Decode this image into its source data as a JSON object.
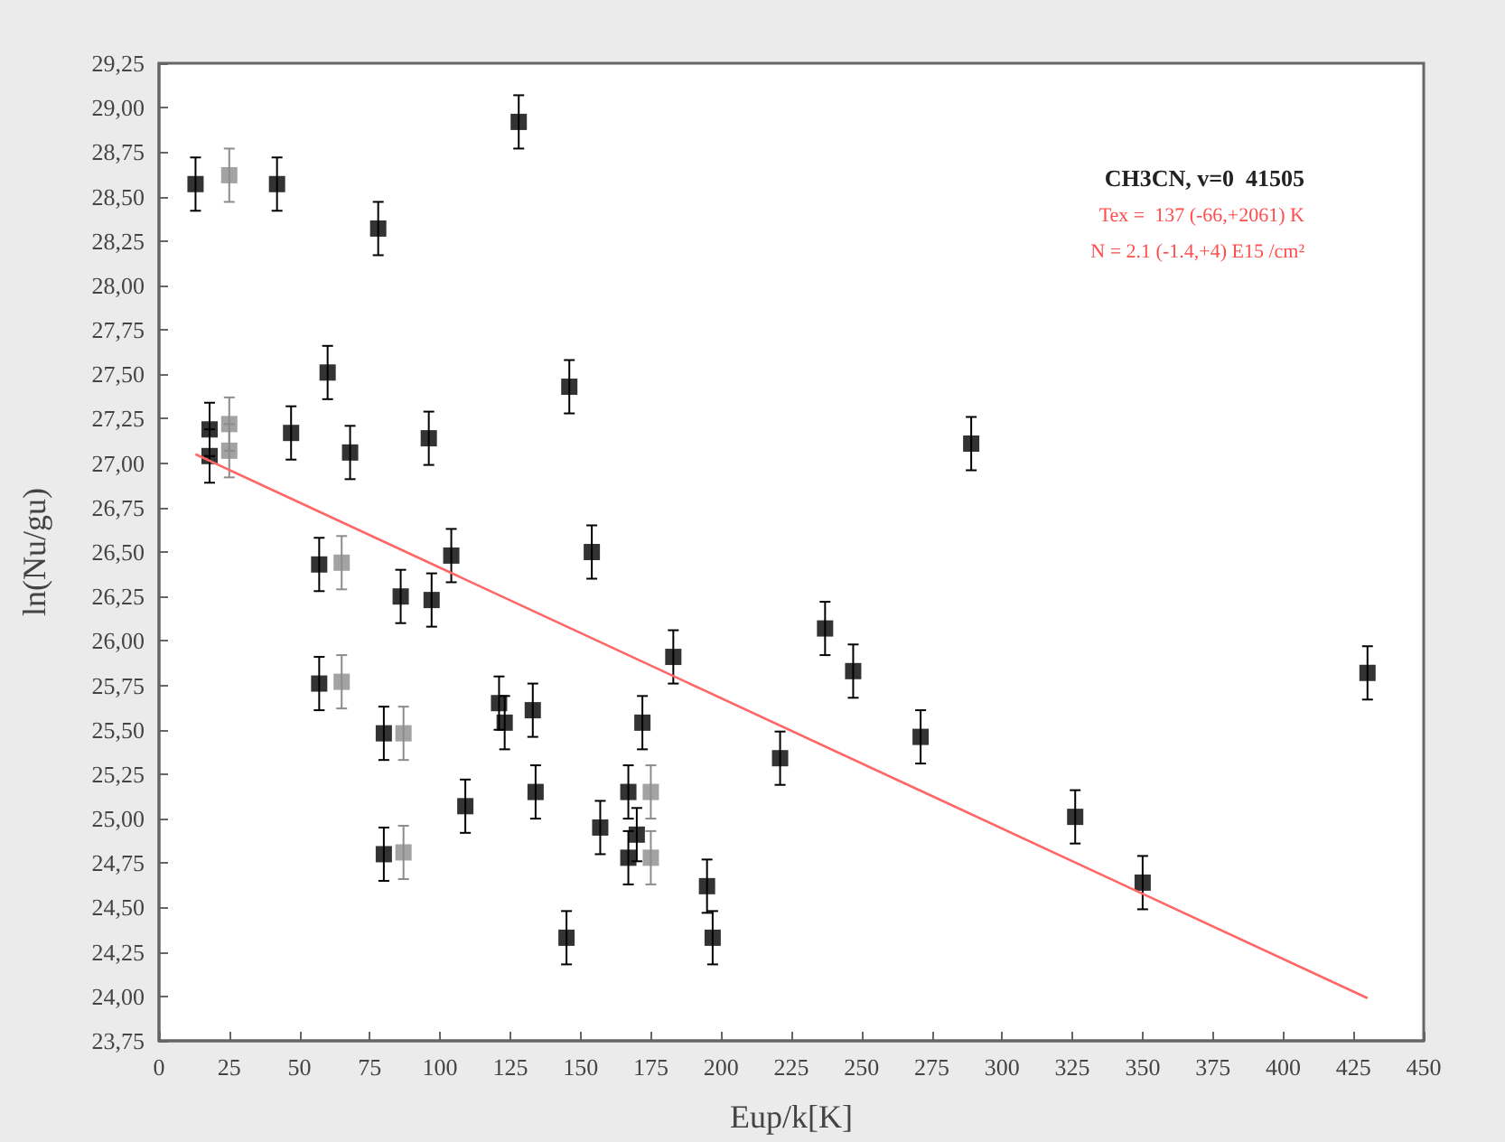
{
  "chart_data": {
    "type": "scatter",
    "xlabel": "Eup/k[K]",
    "ylabel": "ln(Nu/gu)",
    "annotations": [
      "CH3CN, v=0  41505",
      "Tex =  137 (-66,+2061) K",
      "N = 2.1 (-1.4,+4) E15 /cm²"
    ],
    "xlim": [
      0,
      450
    ],
    "xticks": [
      0,
      25,
      50,
      75,
      100,
      125,
      150,
      175,
      200,
      225,
      250,
      275,
      300,
      325,
      350,
      375,
      400,
      425,
      450
    ],
    "ylim": [
      23.75,
      29.25
    ],
    "yticks": [
      {
        "value": 23.75,
        "label": "23,75"
      },
      {
        "value": 24,
        "label": "24,00"
      },
      {
        "value": 24.25,
        "label": "24,25"
      },
      {
        "value": 24.5,
        "label": "24,50"
      },
      {
        "value": 24.75,
        "label": "24,75"
      },
      {
        "value": 25,
        "label": "25,00"
      },
      {
        "value": 25.25,
        "label": "25,25"
      },
      {
        "value": 25.5,
        "label": "25,50"
      },
      {
        "value": 25.75,
        "label": "25,75"
      },
      {
        "value": 26,
        "label": "26,00"
      },
      {
        "value": 26.25,
        "label": "26,25"
      },
      {
        "value": 26.5,
        "label": "26,50"
      },
      {
        "value": 26.75,
        "label": "26,75"
      },
      {
        "value": 27,
        "label": "27,00"
      },
      {
        "value": 27.25,
        "label": "27,25"
      },
      {
        "value": 27.5,
        "label": "27,50"
      },
      {
        "value": 27.75,
        "label": "27,75"
      },
      {
        "value": 28,
        "label": "28,00"
      },
      {
        "value": 28.25,
        "label": "28,25"
      },
      {
        "value": 28.5,
        "label": "28,50"
      },
      {
        "value": 28.75,
        "label": "28,75"
      },
      {
        "value": 29,
        "label": "29,00"
      },
      {
        "value": 29.25,
        "label": "29,25"
      }
    ],
    "grid": false,
    "marker": "square",
    "series": [
      {
        "color": "#000000",
        "x": [
          13,
          18,
          18,
          42,
          47,
          60,
          68,
          78,
          96,
          128,
          146,
          57,
          57,
          80,
          80,
          86,
          97,
          104,
          109,
          121,
          123,
          133,
          134,
          145,
          154,
          157,
          167,
          167,
          170,
          172,
          183,
          195,
          197,
          221,
          237,
          247,
          271,
          289,
          326,
          350,
          430
        ],
        "values": [
          28.57,
          27.19,
          27.04,
          28.57,
          27.17,
          27.51,
          27.06,
          28.32,
          27.14,
          28.92,
          27.43,
          26.43,
          25.76,
          25.48,
          24.8,
          26.25,
          26.23,
          26.48,
          25.07,
          25.65,
          25.54,
          25.61,
          25.15,
          24.33,
          26.5,
          24.95,
          25.15,
          24.78,
          24.91,
          25.54,
          25.91,
          24.62,
          24.33,
          25.34,
          26.07,
          25.83,
          25.46,
          27.11,
          25.01,
          24.64,
          25.82
        ],
        "errors": [
          0.15,
          0.15,
          0.15,
          0.15,
          0.15,
          0.15,
          0.15,
          0.15,
          0.15,
          0.15,
          0.15,
          0.15,
          0.15,
          0.15,
          0.15,
          0.15,
          0.15,
          0.15,
          0.15,
          0.15,
          0.15,
          0.15,
          0.15,
          0.15,
          0.15,
          0.15,
          0.15,
          0.15,
          0.15,
          0.15,
          0.15,
          0.15,
          0.15,
          0.15,
          0.15,
          0.15,
          0.15,
          0.15,
          0.15,
          0.15,
          0.15
        ]
      },
      {
        "color": "#8c8c8c",
        "x": [
          25,
          25,
          25,
          65,
          65,
          87,
          87,
          175,
          175
        ],
        "values": [
          28.62,
          27.22,
          27.07,
          26.44,
          25.77,
          25.48,
          24.81,
          25.15,
          24.78
        ],
        "errors": [
          0.15,
          0.15,
          0.15,
          0.15,
          0.15,
          0.15,
          0.15,
          0.15,
          0.15
        ]
      },
      {
        "type": "line",
        "color": "#ff6666",
        "marker": "none",
        "x": [
          13,
          430
        ],
        "values": [
          27.05,
          23.99
        ]
      }
    ]
  }
}
